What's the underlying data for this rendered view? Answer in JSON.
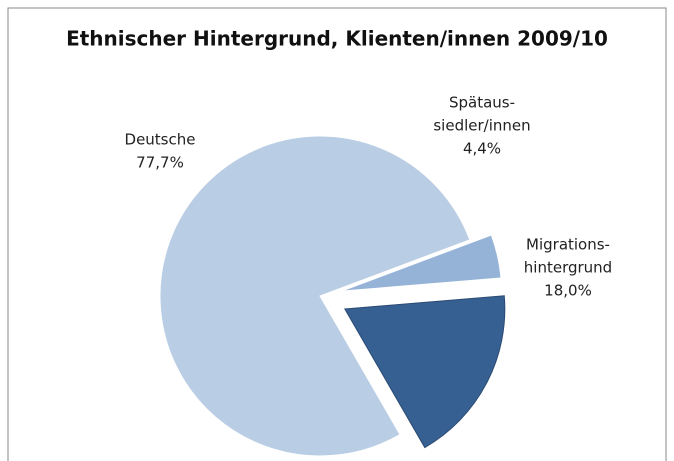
{
  "chart_data": {
    "type": "pie",
    "title": "Ethnischer Hintergrund, Klienten/innen 2009/10",
    "categories": [
      [
        "Deutsche"
      ],
      [
        "Spätaus-",
        "siedler/innen"
      ],
      [
        "Migrations-",
        "hintergrund"
      ]
    ],
    "values": [
      77.7,
      4.4,
      18.0
    ],
    "value_labels": [
      "77,7%",
      "4,4%",
      "18,0%"
    ],
    "colors": [
      "#b9cde5",
      "#95b3d7",
      "#376092"
    ]
  }
}
